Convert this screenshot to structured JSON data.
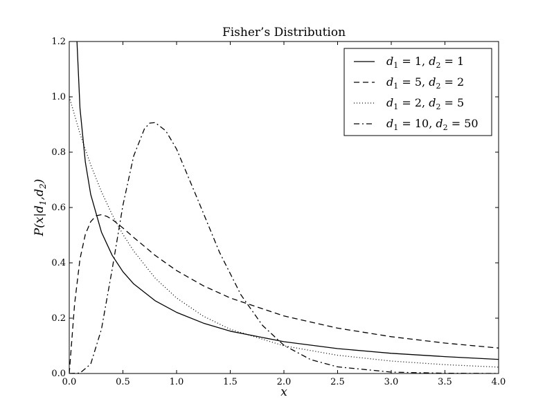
{
  "chart_data": {
    "type": "line",
    "title": "Fisher’s Distribution",
    "xlabel": "x",
    "ylabel": "P(x|d1,d2)",
    "xlim": [
      0.0,
      4.0
    ],
    "ylim": [
      0.0,
      1.2
    ],
    "x_ticks": [
      "0.0",
      "0.5",
      "1.0",
      "1.5",
      "2.0",
      "2.5",
      "3.0",
      "3.5",
      "4.0"
    ],
    "y_ticks": [
      "0.0",
      "0.2",
      "0.4",
      "0.6",
      "0.8",
      "1.0",
      "1.2"
    ],
    "grid": false,
    "legend_position": "top-right",
    "series": [
      {
        "name": "d1 = 1, d2 = 1",
        "line_style": "solid",
        "x": [
          0.05,
          0.1,
          0.15,
          0.2,
          0.3,
          0.4,
          0.5,
          0.6,
          0.8,
          1.0,
          1.25,
          1.5,
          2.0,
          2.5,
          3.0,
          3.5,
          4.0
        ],
        "y": [
          1.389,
          0.959,
          0.764,
          0.647,
          0.511,
          0.427,
          0.368,
          0.324,
          0.263,
          0.221,
          0.182,
          0.153,
          0.115,
          0.09,
          0.073,
          0.061,
          0.051
        ]
      },
      {
        "name": "d1 = 5, d2 = 2",
        "line_style": "dashed",
        "x": [
          0.0,
          0.05,
          0.1,
          0.15,
          0.2,
          0.25,
          0.3,
          0.35,
          0.4,
          0.5,
          0.6,
          0.8,
          1.0,
          1.25,
          1.5,
          2.0,
          2.5,
          3.0,
          3.5,
          4.0
        ],
        "y": [
          0.0,
          0.252,
          0.414,
          0.503,
          0.549,
          0.57,
          0.574,
          0.568,
          0.557,
          0.526,
          0.492,
          0.427,
          0.372,
          0.317,
          0.273,
          0.208,
          0.164,
          0.133,
          0.11,
          0.092
        ]
      },
      {
        "name": "d1 = 2, d2 = 5",
        "line_style": "dotted",
        "x": [
          0.0,
          0.1,
          0.2,
          0.3,
          0.4,
          0.5,
          0.6,
          0.8,
          1.0,
          1.25,
          1.5,
          2.0,
          2.5,
          3.0,
          3.5,
          4.0
        ],
        "y": [
          1.0,
          0.867,
          0.754,
          0.657,
          0.574,
          0.503,
          0.443,
          0.345,
          0.273,
          0.207,
          0.16,
          0.1,
          0.066,
          0.045,
          0.032,
          0.023
        ]
      },
      {
        "name": "d1 = 10, d2 = 50",
        "line_style": "dashdot",
        "x": [
          0.0,
          0.1,
          0.2,
          0.3,
          0.4,
          0.5,
          0.6,
          0.7,
          0.75,
          0.8,
          0.9,
          1.0,
          1.2,
          1.4,
          1.6,
          1.8,
          2.0,
          2.25,
          2.5,
          3.0,
          3.5,
          4.0
        ],
        "y": [
          0.0,
          0.0016,
          0.0342,
          0.16,
          0.377,
          0.608,
          0.786,
          0.884,
          0.905,
          0.907,
          0.877,
          0.811,
          0.626,
          0.438,
          0.284,
          0.174,
          0.102,
          0.05,
          0.024,
          0.005,
          0.001,
          0.0002
        ]
      }
    ],
    "legend_entries": [
      {
        "d1": "1",
        "d2": "1"
      },
      {
        "d1": "5",
        "d2": "2"
      },
      {
        "d1": "2",
        "d2": "5"
      },
      {
        "d1": "10",
        "d2": "50"
      }
    ]
  }
}
